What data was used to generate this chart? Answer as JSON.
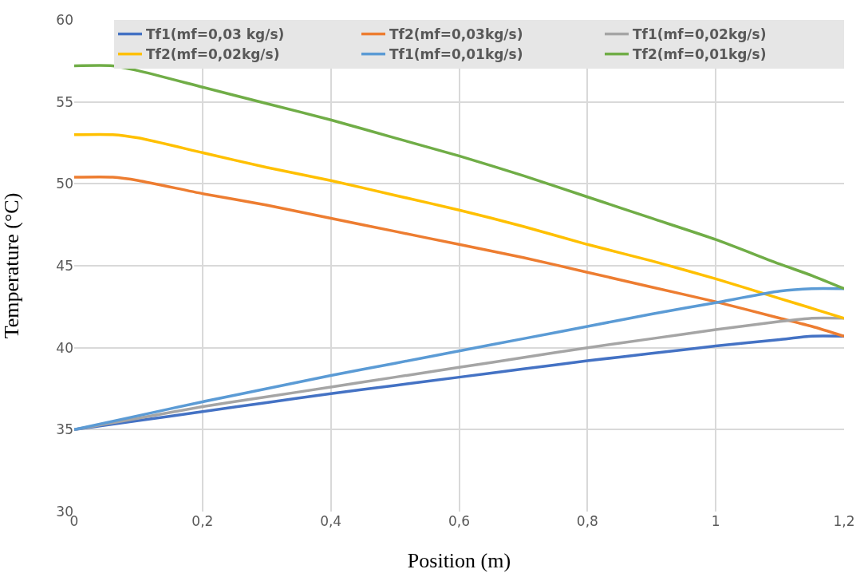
{
  "chart_data": {
    "type": "line",
    "xlabel": "Position (m)",
    "ylabel": "Temperature (°C)",
    "xlim": [
      0,
      1.2
    ],
    "xticks": [
      0,
      {
        "value": 0.2,
        "label": "0,2"
      },
      {
        "value": 0.4,
        "label": "0,4"
      },
      {
        "value": 0.6,
        "label": "0,6"
      },
      {
        "value": 0.8,
        "label": "0,8"
      },
      1,
      {
        "value": 1.2,
        "label": "1,2"
      }
    ],
    "ylim": [
      30,
      60
    ],
    "yticks": [
      30,
      35,
      40,
      45,
      50,
      55,
      60
    ],
    "grid": true,
    "legend": "top right",
    "marker": "none",
    "line_style": "solid",
    "x": [
      0,
      0.06,
      0.1,
      0.2,
      0.3,
      0.4,
      0.5,
      0.6,
      0.7,
      0.8,
      0.9,
      1.0,
      1.1,
      1.15,
      1.2
    ],
    "series": [
      {
        "name": "Tf1(mf=0,03 kg/s)",
        "color": "#4472c4",
        "x": [
          0,
          0.1,
          0.2,
          0.3,
          0.4,
          0.5,
          0.6,
          0.7,
          0.8,
          0.9,
          1.0,
          1.1,
          1.15,
          1.2
        ],
        "values": [
          35,
          35.55,
          36.1,
          36.65,
          37.2,
          37.7,
          38.2,
          38.7,
          39.2,
          39.65,
          40.1,
          40.5,
          40.7,
          40.7
        ]
      },
      {
        "name": "Tf2(mf=0,03kg/s)",
        "color": "#ed7d31",
        "values": [
          50.4,
          50.4,
          50.2,
          49.4,
          48.7,
          47.9,
          47.1,
          46.3,
          45.5,
          44.6,
          43.7,
          42.8,
          41.8,
          41.3,
          40.7
        ]
      },
      {
        "name": "Tf1(mf=0,02kg/s)",
        "color": "#a5a5a5",
        "x": [
          0,
          0.1,
          0.2,
          0.3,
          0.4,
          0.5,
          0.6,
          0.7,
          0.8,
          0.9,
          1.0,
          1.1,
          1.15,
          1.2
        ],
        "values": [
          35,
          35.7,
          36.4,
          37.0,
          37.6,
          38.2,
          38.8,
          39.4,
          40.0,
          40.55,
          41.1,
          41.6,
          41.8,
          41.8
        ]
      },
      {
        "name": "Tf2(mf=0,02kg/s)",
        "color": "#ffc000",
        "values": [
          53.0,
          53.0,
          52.8,
          51.9,
          51.0,
          50.2,
          49.3,
          48.4,
          47.4,
          46.3,
          45.3,
          44.2,
          43.0,
          42.4,
          41.8
        ]
      },
      {
        "name": "Tf1(mf=0,01kg/s)",
        "color": "#5b9bd5",
        "x": [
          0,
          0.1,
          0.2,
          0.3,
          0.4,
          0.5,
          0.6,
          0.7,
          0.8,
          0.9,
          1.0,
          1.1,
          1.15,
          1.2
        ],
        "values": [
          35,
          35.85,
          36.7,
          37.5,
          38.3,
          39.05,
          39.8,
          40.55,
          41.3,
          42.05,
          42.75,
          43.45,
          43.6,
          43.6
        ]
      },
      {
        "name": "Tf2(mf=0,01kg/s)",
        "color": "#70ad47",
        "values": [
          57.2,
          57.2,
          56.9,
          55.9,
          54.9,
          53.9,
          52.8,
          51.7,
          50.5,
          49.2,
          47.9,
          46.6,
          45.1,
          44.4,
          43.6
        ]
      }
    ]
  }
}
